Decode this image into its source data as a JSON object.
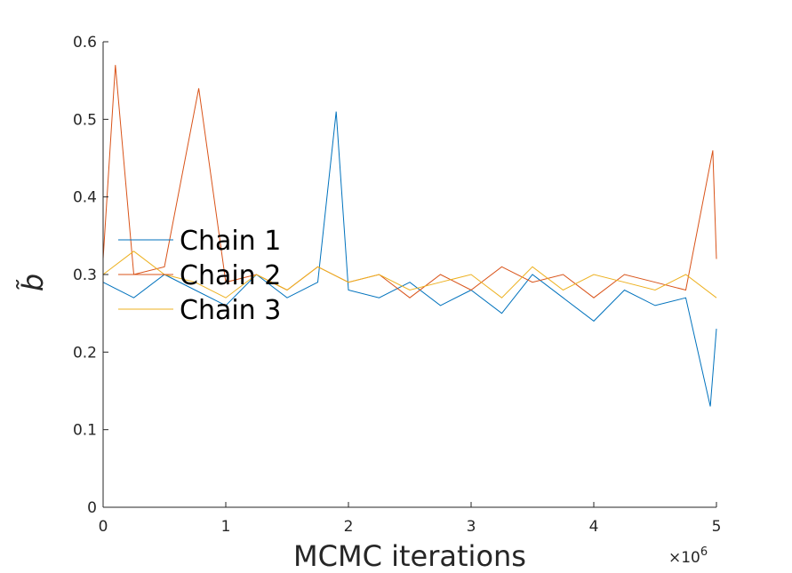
{
  "chart_data": {
    "type": "line",
    "title": "",
    "xlabel": "MCMC iterations",
    "ylabel": "b̃",
    "x_exponent_label": "×10",
    "x_exponent_power": "6",
    "xlim": [
      0,
      5
    ],
    "ylim": [
      0,
      0.6
    ],
    "x_ticks": [
      0,
      1,
      2,
      3,
      4,
      5
    ],
    "x_tick_labels": [
      "0",
      "1",
      "2",
      "3",
      "4",
      "5"
    ],
    "y_ticks": [
      0,
      0.1,
      0.2,
      0.3,
      0.4,
      0.5,
      0.6
    ],
    "y_tick_labels": [
      "0",
      "0.1",
      "0.2",
      "0.3",
      "0.4",
      "0.5",
      "0.6"
    ],
    "grid": false,
    "legend_position": "left-middle",
    "series": [
      {
        "name": "Chain 1",
        "color": "#0072BD",
        "x": [
          0,
          0.25,
          0.5,
          0.75,
          1,
          1.25,
          1.5,
          1.75,
          1.9,
          2,
          2.25,
          2.5,
          2.75,
          3,
          3.25,
          3.5,
          3.75,
          4,
          4.25,
          4.5,
          4.75,
          4.95,
          5
        ],
        "y": [
          0.29,
          0.27,
          0.3,
          0.28,
          0.26,
          0.3,
          0.27,
          0.29,
          0.51,
          0.28,
          0.27,
          0.29,
          0.26,
          0.28,
          0.25,
          0.3,
          0.27,
          0.24,
          0.28,
          0.26,
          0.27,
          0.13,
          0.23
        ]
      },
      {
        "name": "Chain 2",
        "color": "#D95319",
        "x": [
          0,
          0.1,
          0.25,
          0.5,
          0.78,
          1,
          1.25,
          1.5,
          1.75,
          2,
          2.25,
          2.5,
          2.75,
          3,
          3.25,
          3.5,
          3.75,
          4,
          4.25,
          4.5,
          4.75,
          4.97,
          5
        ],
        "y": [
          0.32,
          0.57,
          0.3,
          0.31,
          0.54,
          0.29,
          0.3,
          0.28,
          0.31,
          0.29,
          0.3,
          0.27,
          0.3,
          0.28,
          0.31,
          0.29,
          0.3,
          0.27,
          0.3,
          0.29,
          0.28,
          0.46,
          0.32
        ]
      },
      {
        "name": "Chain 3",
        "color": "#EDB120",
        "x": [
          0,
          0.25,
          0.5,
          0.75,
          1,
          1.25,
          1.5,
          1.75,
          2,
          2.25,
          2.5,
          2.75,
          3,
          3.25,
          3.5,
          3.75,
          4,
          4.25,
          4.5,
          4.75,
          5
        ],
        "y": [
          0.3,
          0.33,
          0.3,
          0.29,
          0.27,
          0.3,
          0.28,
          0.31,
          0.29,
          0.3,
          0.28,
          0.29,
          0.3,
          0.27,
          0.31,
          0.28,
          0.3,
          0.29,
          0.28,
          0.3,
          0.27
        ]
      }
    ]
  }
}
